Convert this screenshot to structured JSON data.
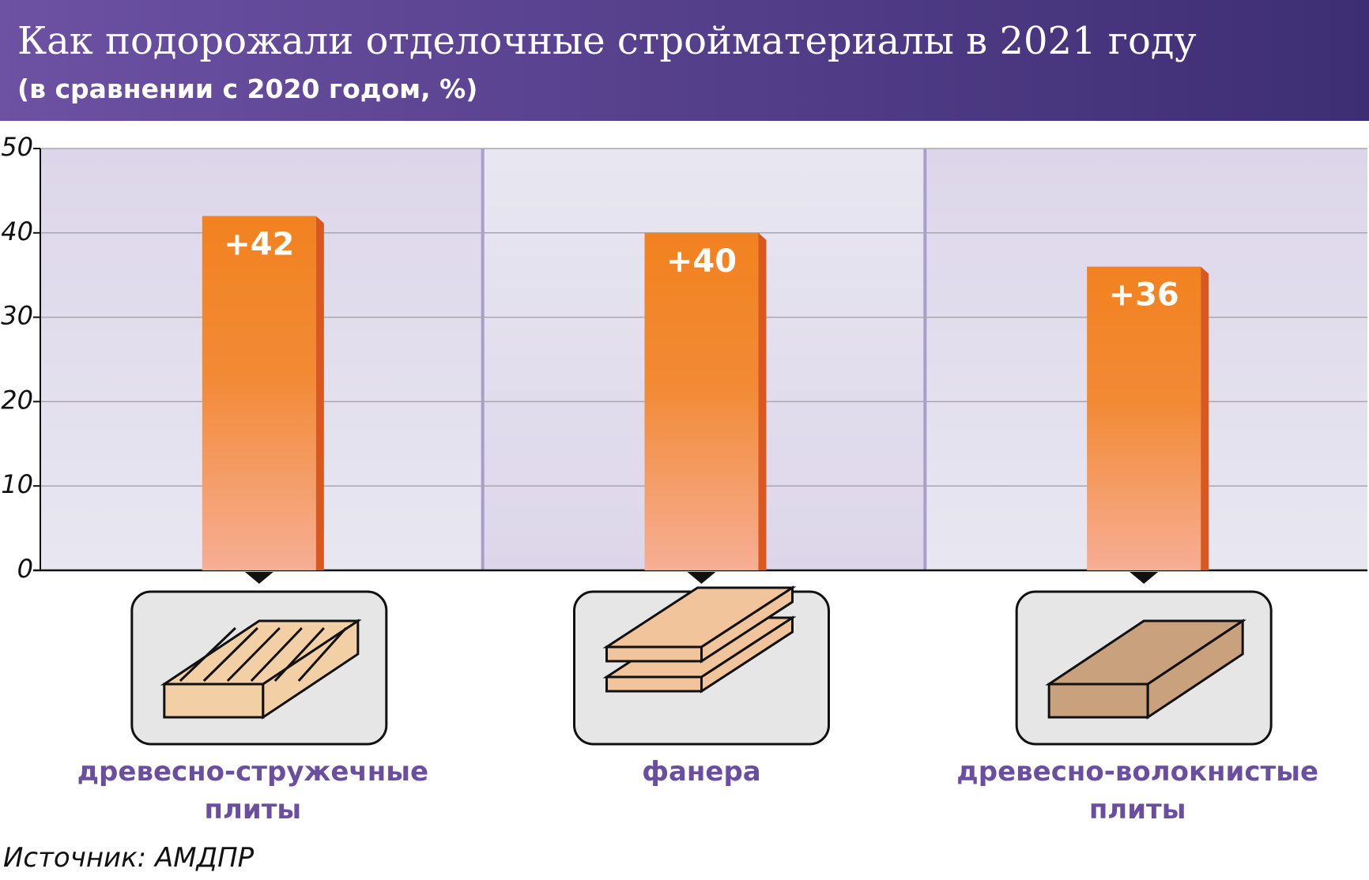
{
  "chart_data": {
    "type": "bar",
    "title": "Как подорожали отделочные стройматериалы в 2021 году",
    "subtitle": "(в сравнении с 2020 годом, %)",
    "categories": [
      "древесно-стружечные плиты",
      "фанера",
      "древесно-волокнистые плиты"
    ],
    "values": [
      42,
      40,
      36
    ],
    "value_labels": [
      "+42",
      "+40",
      "+36"
    ],
    "color": "#f28220",
    "ylim": [
      0,
      50
    ],
    "yticks": [
      0,
      10,
      20,
      30,
      40,
      50
    ],
    "grid": true,
    "source": "Источник: АМДПР"
  }
}
